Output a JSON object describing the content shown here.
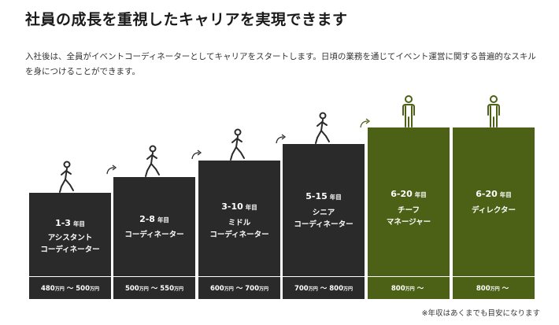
{
  "title": "社員の成長を重視したキャリアを実現できます",
  "intro": "入社後は、全員がイベントコーディネーターとしてキャリアをスタートします。日頃の業務を通じてイベント運営に関する普遍的なスキルを身につけることができます。",
  "year_unit": "年目",
  "salary_unit": "万円",
  "tilde": "〜",
  "steps": [
    {
      "years": "1-3",
      "role": "アシスタント\nコーディネーター",
      "salary_min": "480",
      "salary_max": "500",
      "color": "#2a2a2a",
      "figure": "walking-person-icon"
    },
    {
      "years": "2-8",
      "role": "コーディネーター",
      "salary_min": "500",
      "salary_max": "550",
      "color": "#2a2a2a",
      "figure": "walking-person-icon"
    },
    {
      "years": "3-10",
      "role": "ミドル\nコーディネーター",
      "salary_min": "600",
      "salary_max": "700",
      "color": "#2a2a2a",
      "figure": "walking-person-icon"
    },
    {
      "years": "5-15",
      "role": "シニア\nコーディネーター",
      "salary_min": "700",
      "salary_max": "800",
      "color": "#2a2a2a",
      "figure": "walking-person-icon"
    },
    {
      "years": "6-20",
      "role": "チーフ\nマネージャー",
      "salary_min": "800",
      "salary_max": "",
      "color": "#4d6116",
      "figure": "standing-person-icon"
    },
    {
      "years": "6-20",
      "role": "ディレクター",
      "salary_min": "800",
      "salary_max": "",
      "color": "#4d6116",
      "figure": "standing-person-icon"
    }
  ],
  "note": "※年収はあくまでも目安になります"
}
